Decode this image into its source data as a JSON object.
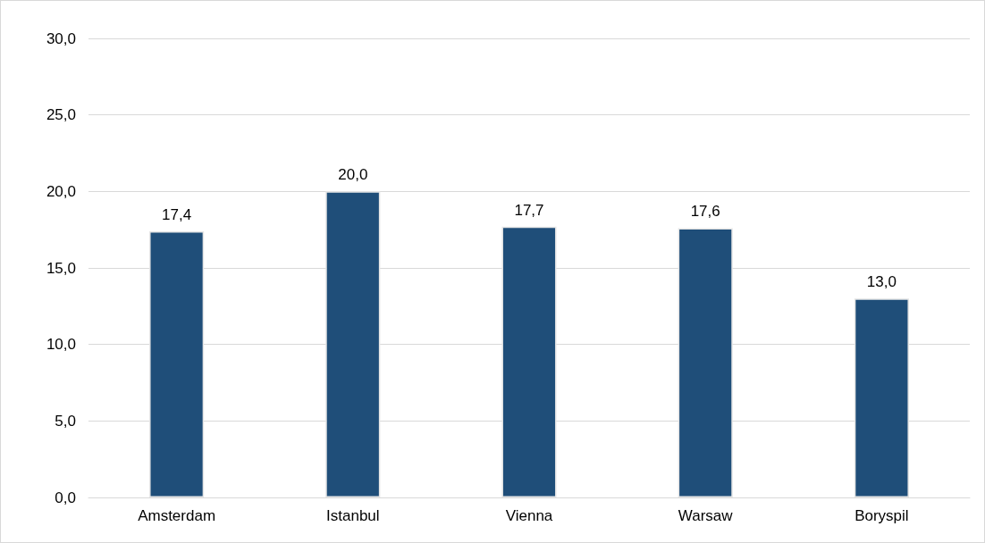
{
  "chart_data": {
    "type": "bar",
    "categories": [
      "Amsterdam",
      "Istanbul",
      "Vienna",
      "Warsaw",
      "Boryspil"
    ],
    "values": [
      17.4,
      20.0,
      17.7,
      17.6,
      13.0
    ],
    "value_labels": [
      "17,4",
      "20,0",
      "17,7",
      "17,6",
      "13,0"
    ],
    "color": "#1f4e79",
    "ylim": [
      0,
      30
    ],
    "yticks": [
      {
        "value": 0,
        "label": "0,0"
      },
      {
        "value": 5,
        "label": "5,0"
      },
      {
        "value": 10,
        "label": "10,0"
      },
      {
        "value": 15,
        "label": "15,0"
      },
      {
        "value": 20,
        "label": "20,0"
      },
      {
        "value": 25,
        "label": "25,0"
      },
      {
        "value": 30,
        "label": "30,0"
      }
    ],
    "grid": "y"
  }
}
